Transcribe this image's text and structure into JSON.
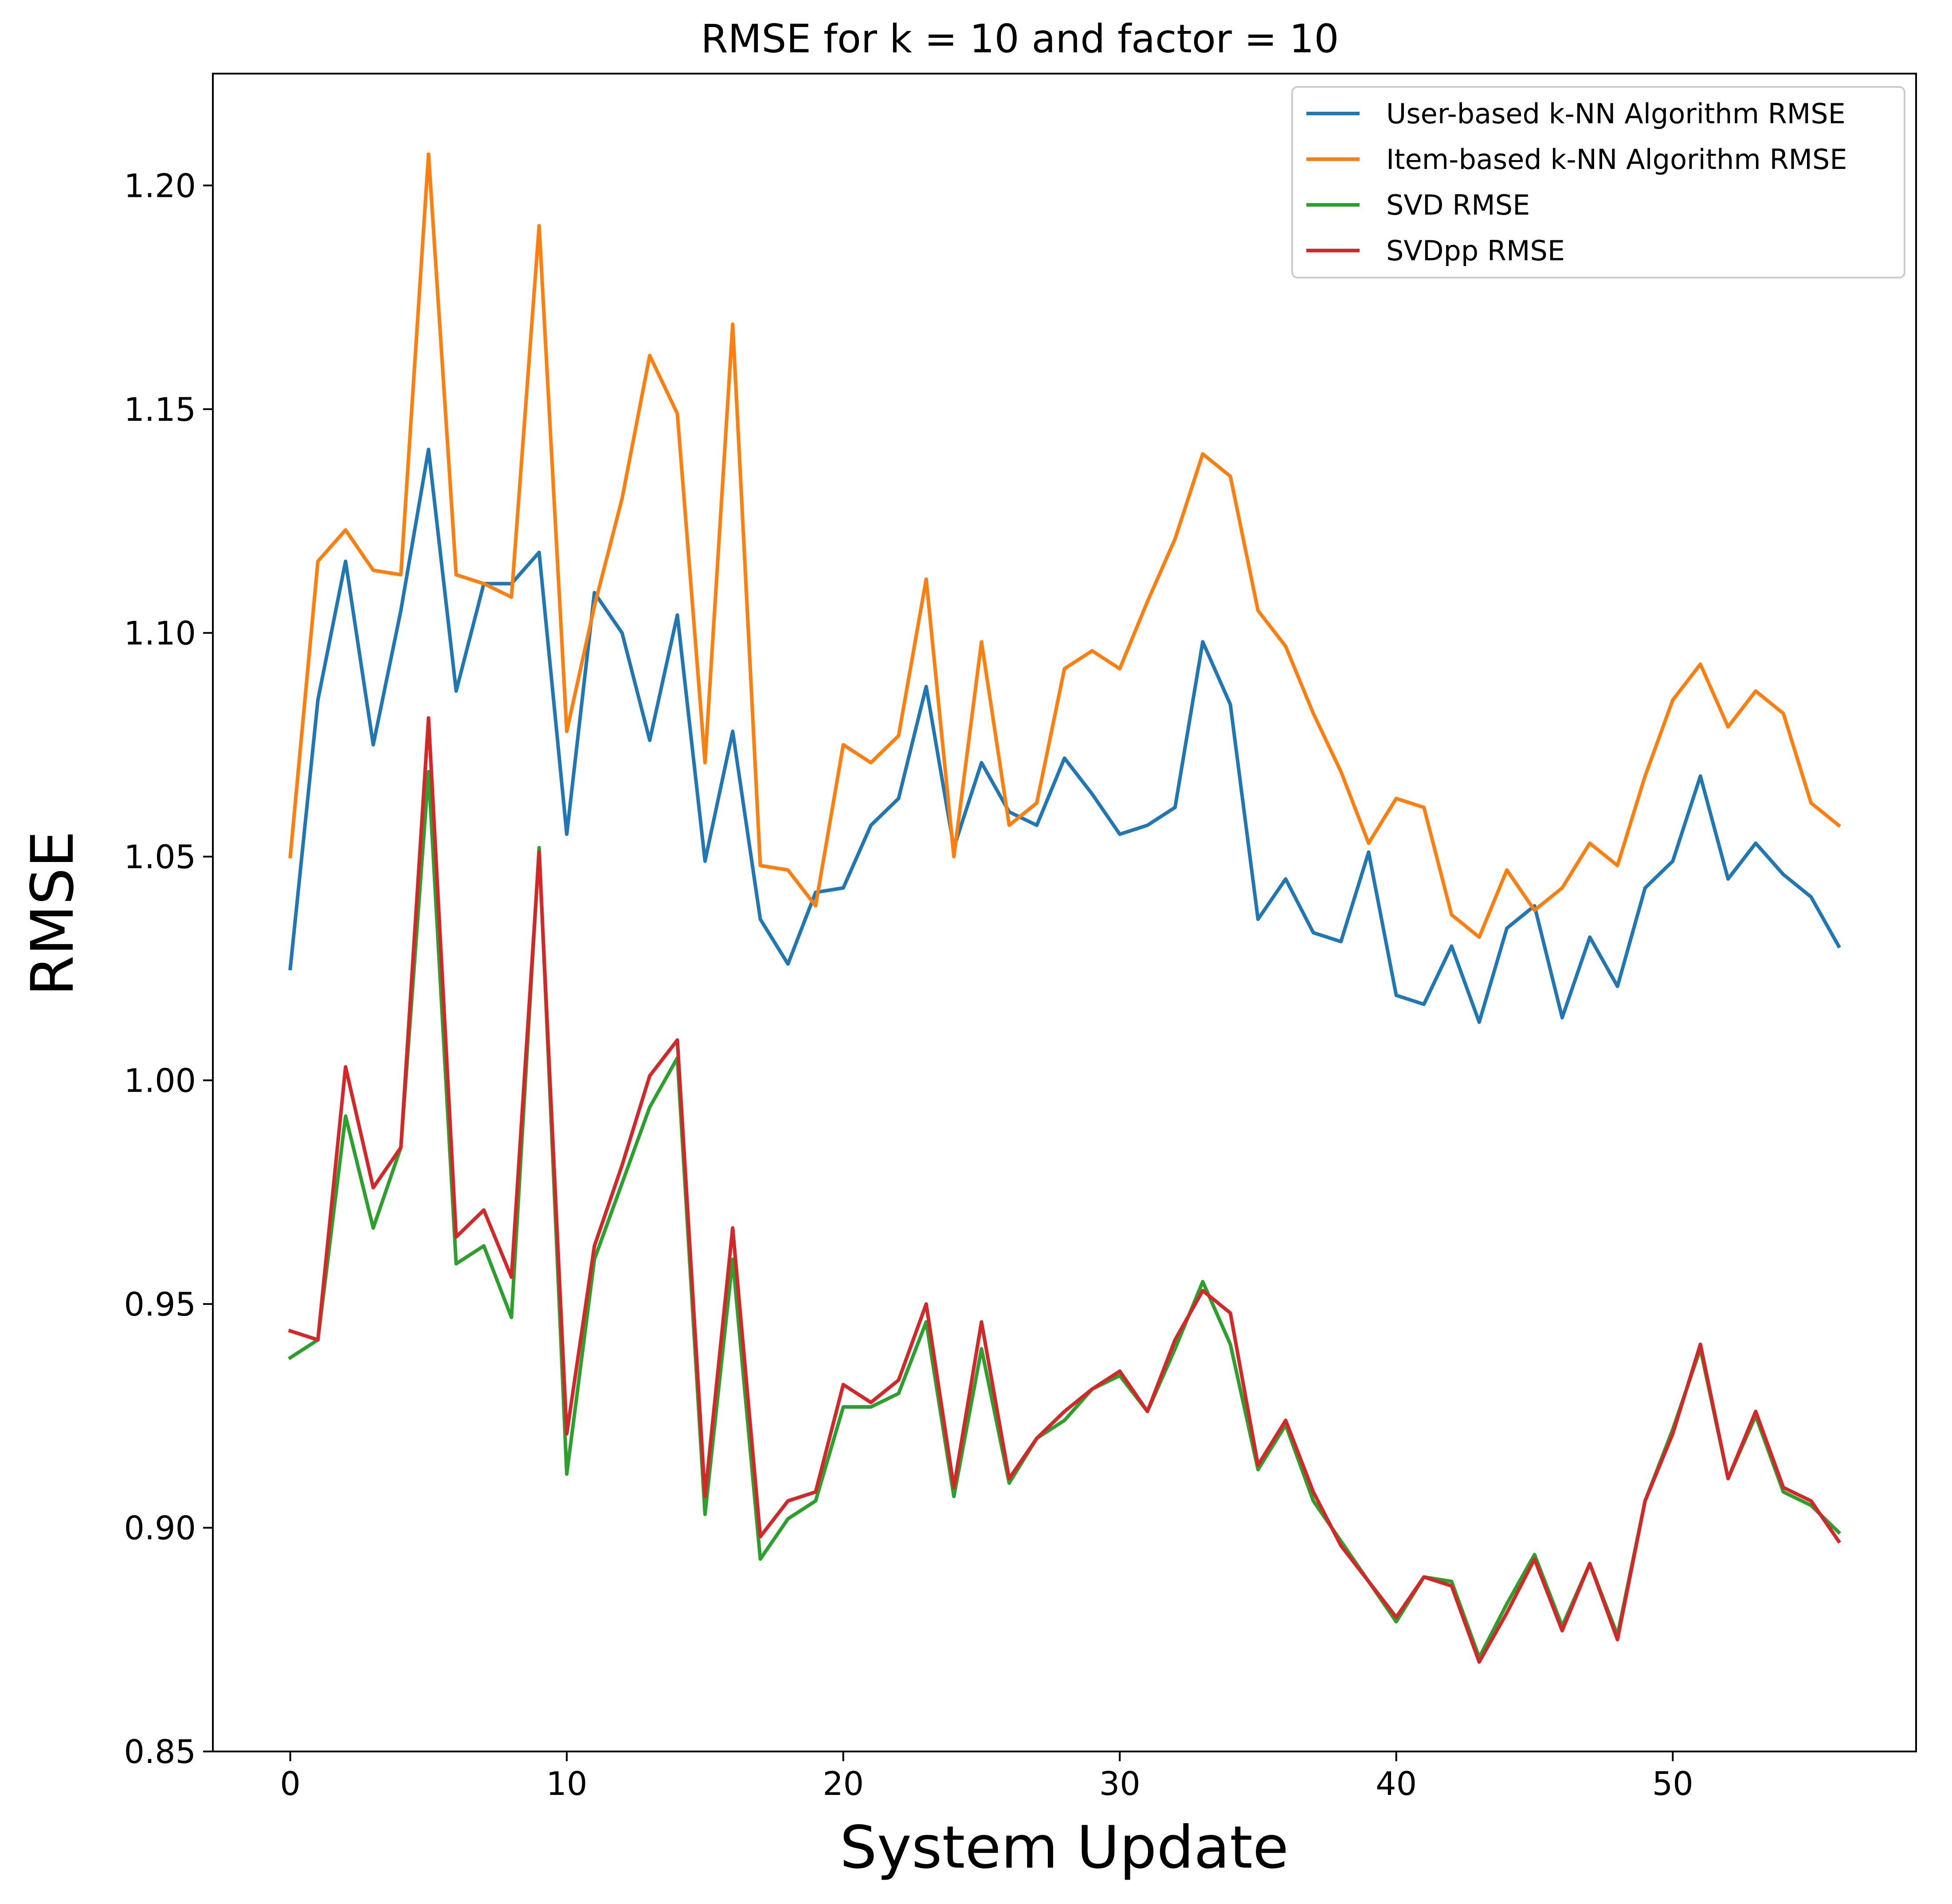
{
  "chart_data": {
    "type": "line",
    "title": "RMSE for k = 10 and factor = 10",
    "xlabel": "System Update",
    "ylabel": "RMSE",
    "xlim": [
      -2.8,
      58.8
    ],
    "ylim": [
      0.85,
      1.225
    ],
    "xticks": [
      0,
      10,
      20,
      30,
      40,
      50
    ],
    "xtick_labels": [
      "0",
      "10",
      "20",
      "30",
      "40",
      "50"
    ],
    "yticks": [
      0.85,
      0.9,
      0.95,
      1.0,
      1.05,
      1.1,
      1.15,
      1.2
    ],
    "ytick_labels": [
      "0.85",
      "0.90",
      "0.95",
      "1.00",
      "1.05",
      "1.10",
      "1.15",
      "1.20"
    ],
    "grid": false,
    "legend_position": "top-right",
    "x": [
      0,
      1,
      2,
      3,
      4,
      5,
      6,
      7,
      8,
      9,
      10,
      11,
      12,
      13,
      14,
      15,
      16,
      17,
      18,
      19,
      20,
      21,
      22,
      23,
      24,
      25,
      26,
      27,
      28,
      29,
      30,
      31,
      32,
      33,
      34,
      35,
      36,
      37,
      38,
      39,
      40,
      41,
      42,
      43,
      44,
      45,
      46,
      47,
      48,
      49,
      50,
      51,
      52,
      53,
      54,
      55,
      56
    ],
    "series": [
      {
        "name": "User-based k-NN Algorithm RMSE",
        "color": "#1f77b4",
        "values": [
          1.025,
          1.085,
          1.116,
          1.075,
          1.105,
          1.141,
          1.087,
          1.111,
          1.111,
          1.118,
          1.055,
          1.109,
          1.1,
          1.076,
          1.104,
          1.049,
          1.078,
          1.036,
          1.026,
          1.042,
          1.043,
          1.057,
          1.063,
          1.088,
          1.052,
          1.071,
          1.06,
          1.057,
          1.072,
          1.064,
          1.055,
          1.057,
          1.061,
          1.098,
          1.084,
          1.036,
          1.045,
          1.033,
          1.031,
          1.051,
          1.019,
          1.017,
          1.03,
          1.013,
          1.034,
          1.039,
          1.014,
          1.032,
          1.021,
          1.043,
          1.049,
          1.068,
          1.045,
          1.053,
          1.046,
          1.041,
          1.03
        ]
      },
      {
        "name": "Item-based k-NN Algorithm RMSE",
        "color": "#ff7f0e",
        "values": [
          1.05,
          1.116,
          1.123,
          1.114,
          1.113,
          1.207,
          1.113,
          1.111,
          1.108,
          1.191,
          1.078,
          1.106,
          1.13,
          1.162,
          1.149,
          1.071,
          1.169,
          1.048,
          1.047,
          1.039,
          1.075,
          1.071,
          1.077,
          1.112,
          1.05,
          1.098,
          1.057,
          1.062,
          1.092,
          1.096,
          1.092,
          1.107,
          1.121,
          1.14,
          1.135,
          1.105,
          1.097,
          1.082,
          1.069,
          1.053,
          1.063,
          1.061,
          1.037,
          1.032,
          1.047,
          1.038,
          1.043,
          1.053,
          1.048,
          1.068,
          1.085,
          1.093,
          1.079,
          1.087,
          1.082,
          1.062,
          1.057
        ]
      },
      {
        "name": "SVD RMSE",
        "color": "#2ca02c",
        "values": [
          0.938,
          0.942,
          0.992,
          0.967,
          0.985,
          1.069,
          0.959,
          0.963,
          0.947,
          1.052,
          0.912,
          0.96,
          0.977,
          0.994,
          1.005,
          0.903,
          0.96,
          0.893,
          0.902,
          0.906,
          0.927,
          0.927,
          0.93,
          0.946,
          0.907,
          0.94,
          0.91,
          0.92,
          0.924,
          0.931,
          0.934,
          0.926,
          0.94,
          0.955,
          0.941,
          0.913,
          0.923,
          0.906,
          0.897,
          0.888,
          0.879,
          0.889,
          0.888,
          0.871,
          0.883,
          0.894,
          0.878,
          0.892,
          0.876,
          0.906,
          0.922,
          0.94,
          0.911,
          0.925,
          0.908,
          0.905,
          0.899
        ]
      },
      {
        "name": "SVDpp RMSE",
        "color": "#d62728",
        "values": [
          0.944,
          0.942,
          1.003,
          0.976,
          0.985,
          1.081,
          0.965,
          0.971,
          0.956,
          1.051,
          0.921,
          0.963,
          0.981,
          1.001,
          1.009,
          0.907,
          0.967,
          0.898,
          0.906,
          0.908,
          0.932,
          0.928,
          0.933,
          0.95,
          0.909,
          0.946,
          0.911,
          0.92,
          0.926,
          0.931,
          0.935,
          0.926,
          0.942,
          0.953,
          0.948,
          0.914,
          0.924,
          0.908,
          0.896,
          0.888,
          0.88,
          0.889,
          0.887,
          0.87,
          0.881,
          0.893,
          0.877,
          0.892,
          0.875,
          0.906,
          0.921,
          0.941,
          0.911,
          0.926,
          0.909,
          0.906,
          0.897
        ]
      }
    ]
  }
}
